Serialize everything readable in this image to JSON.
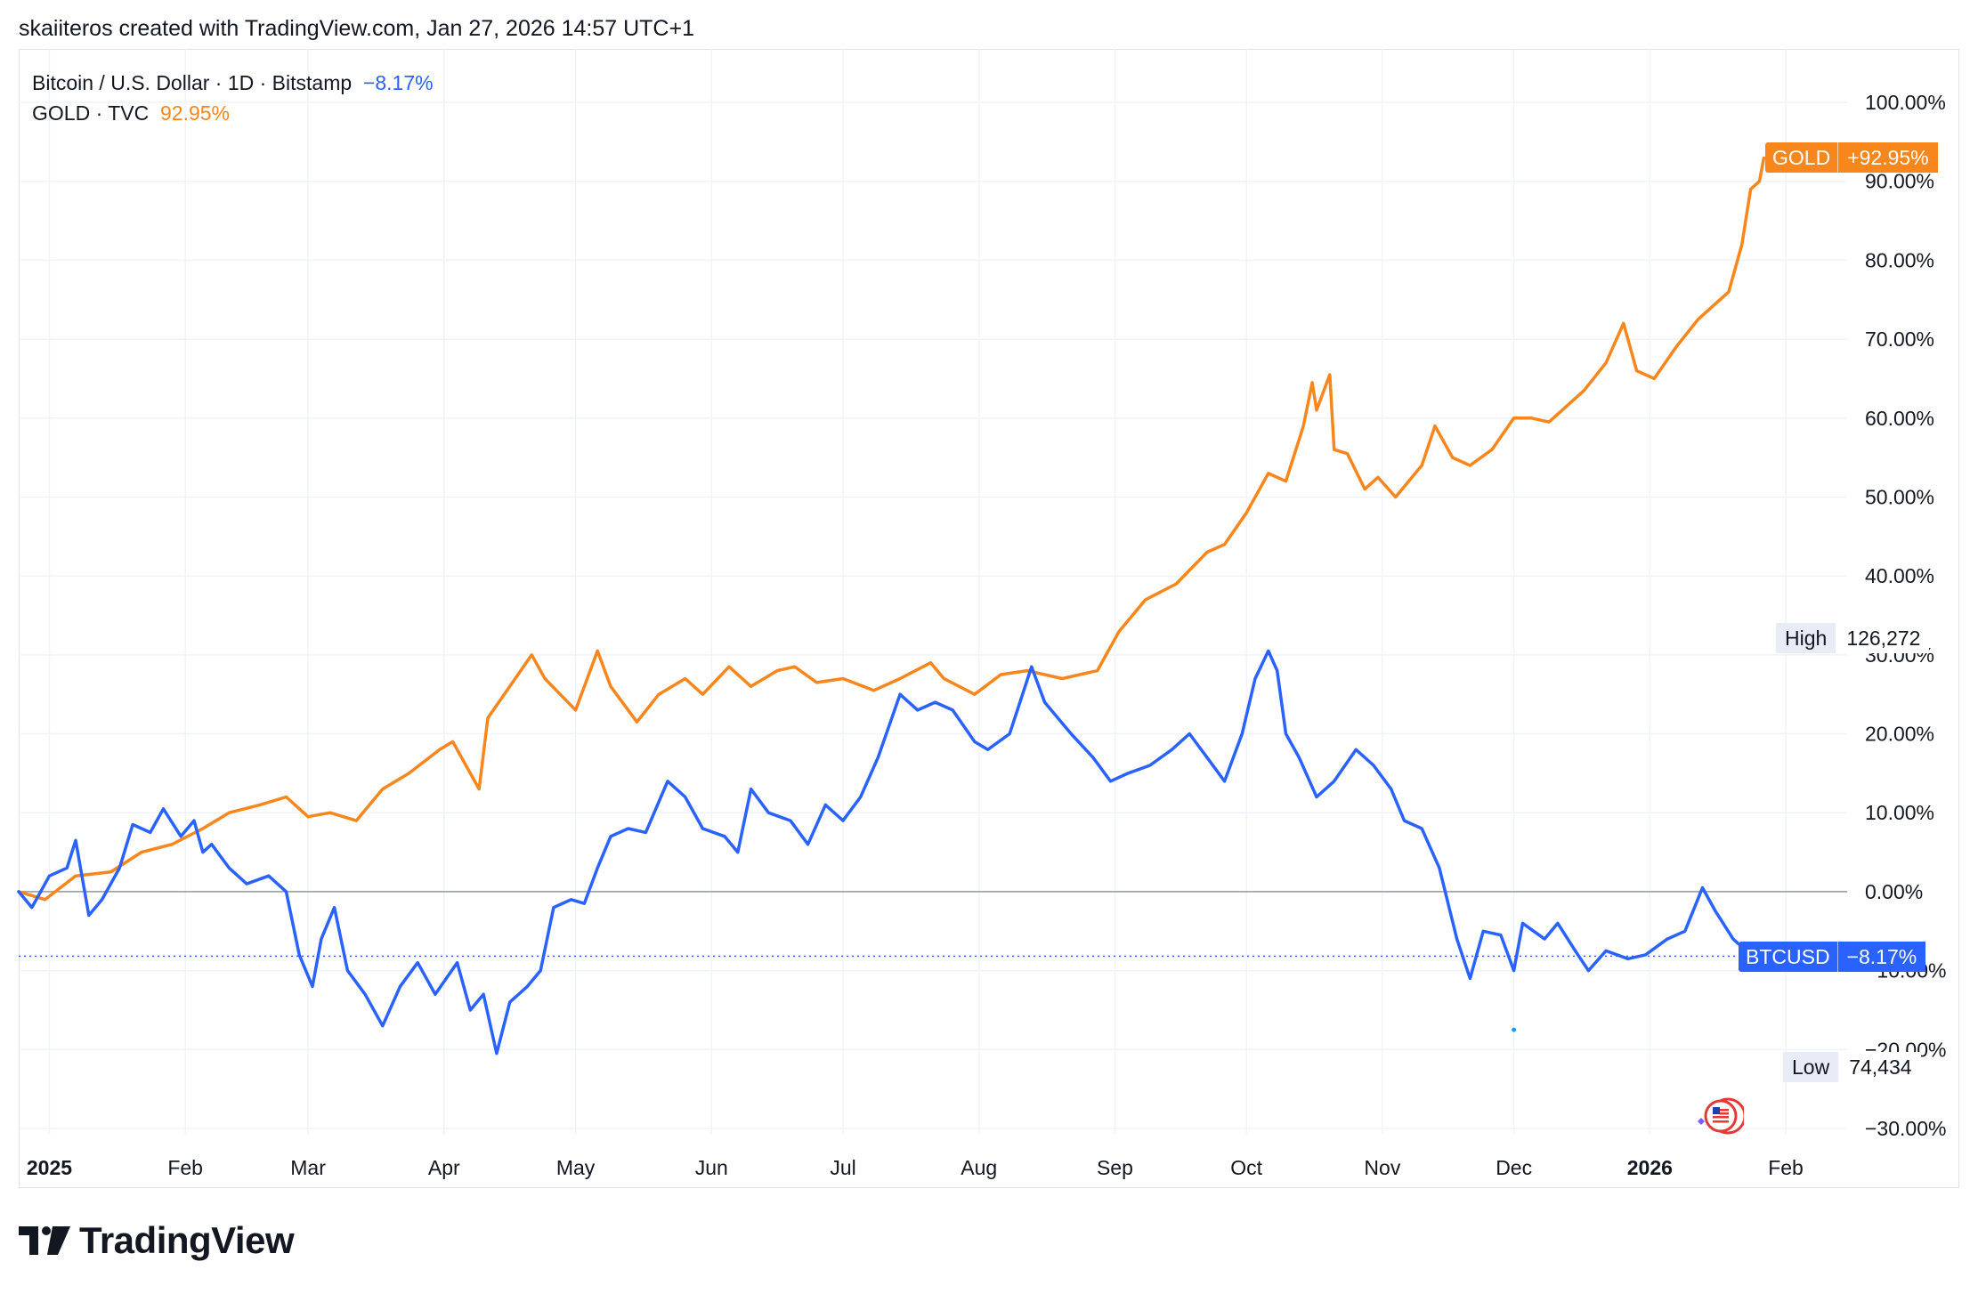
{
  "attribution": "skaiiteros created with TradingView.com, Jan 27, 2026 14:57 UTC+1",
  "legend": [
    {
      "label": "Bitcoin / U.S. Dollar · 1D · Bitstamp",
      "value": "−8.17%",
      "color": "#2962ff"
    },
    {
      "label": "GOLD · TVC",
      "value": "92.95%",
      "color": "#f7861d"
    }
  ],
  "price_tags": {
    "gold": {
      "symbol": "GOLD",
      "value": "+92.95%",
      "color": "#f7861d"
    },
    "btc": {
      "symbol": "BTCUSD",
      "value": "−8.17%",
      "color": "#2962ff"
    }
  },
  "high": {
    "label": "High",
    "value": "126,272"
  },
  "low": {
    "label": "Low",
    "value": "74,434"
  },
  "brand": "TradingView",
  "icons": {
    "logo": "tradingview-logo-icon",
    "event": "us-flag-event-icon"
  },
  "chart_data": {
    "type": "line",
    "title": "",
    "xlabel": "",
    "ylabel": "",
    "y_unit": "%",
    "ylim": [
      -30,
      100
    ],
    "y_ticks": [
      100,
      90,
      80,
      70,
      60,
      50,
      40,
      30,
      20,
      10,
      0,
      -10,
      -20,
      -30
    ],
    "y_tick_labels": [
      "100.00%",
      "90.00%",
      "80.00%",
      "70.00%",
      "60.00%",
      "50.00%",
      "40.00%",
      "30.00%",
      "20.00%",
      "10.00%",
      "0.00%",
      "−10.00%",
      "−20.00%",
      "−30.00%"
    ],
    "x_range": [
      "2024-12-25",
      "2026-02-15"
    ],
    "x_ticks": [
      {
        "date": "2025-01-01",
        "label": "2025",
        "bold": true
      },
      {
        "date": "2025-02-01",
        "label": "Feb",
        "bold": false
      },
      {
        "date": "2025-03-01",
        "label": "Mar",
        "bold": false
      },
      {
        "date": "2025-04-01",
        "label": "Apr",
        "bold": false
      },
      {
        "date": "2025-05-01",
        "label": "May",
        "bold": false
      },
      {
        "date": "2025-06-01",
        "label": "Jun",
        "bold": false
      },
      {
        "date": "2025-07-01",
        "label": "Jul",
        "bold": false
      },
      {
        "date": "2025-08-01",
        "label": "Aug",
        "bold": false
      },
      {
        "date": "2025-09-01",
        "label": "Sep",
        "bold": false
      },
      {
        "date": "2025-10-01",
        "label": "Oct",
        "bold": false
      },
      {
        "date": "2025-11-01",
        "label": "Nov",
        "bold": false
      },
      {
        "date": "2025-12-01",
        "label": "Dec",
        "bold": false
      },
      {
        "date": "2026-01-01",
        "label": "2026",
        "bold": true
      },
      {
        "date": "2026-02-01",
        "label": "Feb",
        "bold": false
      }
    ],
    "grid": true,
    "legend_position": "top-left",
    "zero_line": 0,
    "last_value_line": -8.17,
    "series": [
      {
        "name": "GOLD",
        "color": "#f7861d",
        "points": [
          [
            "2024-12-25",
            0
          ],
          [
            "2024-12-31",
            -1
          ],
          [
            "2025-01-07",
            2
          ],
          [
            "2025-01-15",
            2.5
          ],
          [
            "2025-01-22",
            5
          ],
          [
            "2025-01-29",
            6
          ],
          [
            "2025-02-05",
            8
          ],
          [
            "2025-02-11",
            10
          ],
          [
            "2025-02-18",
            11
          ],
          [
            "2025-02-24",
            12
          ],
          [
            "2025-03-01",
            9.5
          ],
          [
            "2025-03-06",
            10
          ],
          [
            "2025-03-12",
            9
          ],
          [
            "2025-03-18",
            13
          ],
          [
            "2025-03-24",
            15
          ],
          [
            "2025-03-31",
            18
          ],
          [
            "2025-04-03",
            19
          ],
          [
            "2025-04-07",
            15
          ],
          [
            "2025-04-09",
            13
          ],
          [
            "2025-04-11",
            22
          ],
          [
            "2025-04-16",
            26
          ],
          [
            "2025-04-21",
            30
          ],
          [
            "2025-04-24",
            27
          ],
          [
            "2025-05-01",
            23
          ],
          [
            "2025-05-06",
            30.5
          ],
          [
            "2025-05-09",
            26
          ],
          [
            "2025-05-15",
            21.5
          ],
          [
            "2025-05-20",
            25
          ],
          [
            "2025-05-26",
            27
          ],
          [
            "2025-05-30",
            25
          ],
          [
            "2025-06-05",
            28.5
          ],
          [
            "2025-06-10",
            26
          ],
          [
            "2025-06-16",
            28
          ],
          [
            "2025-06-20",
            28.5
          ],
          [
            "2025-06-25",
            26.5
          ],
          [
            "2025-07-01",
            27
          ],
          [
            "2025-07-08",
            25.5
          ],
          [
            "2025-07-14",
            27
          ],
          [
            "2025-07-21",
            29
          ],
          [
            "2025-07-24",
            27
          ],
          [
            "2025-07-31",
            25
          ],
          [
            "2025-08-06",
            27.5
          ],
          [
            "2025-08-12",
            28
          ],
          [
            "2025-08-20",
            27
          ],
          [
            "2025-08-28",
            28
          ],
          [
            "2025-09-02",
            33
          ],
          [
            "2025-09-08",
            37
          ],
          [
            "2025-09-15",
            39
          ],
          [
            "2025-09-22",
            43
          ],
          [
            "2025-09-26",
            44
          ],
          [
            "2025-10-01",
            48
          ],
          [
            "2025-10-06",
            53
          ],
          [
            "2025-10-10",
            52
          ],
          [
            "2025-10-14",
            59
          ],
          [
            "2025-10-16",
            64.5
          ],
          [
            "2025-10-17",
            61
          ],
          [
            "2025-10-20",
            65.5
          ],
          [
            "2025-10-21",
            56
          ],
          [
            "2025-10-24",
            55.5
          ],
          [
            "2025-10-28",
            51
          ],
          [
            "2025-10-31",
            52.5
          ],
          [
            "2025-11-04",
            50
          ],
          [
            "2025-11-10",
            54
          ],
          [
            "2025-11-13",
            59
          ],
          [
            "2025-11-17",
            55
          ],
          [
            "2025-11-21",
            54
          ],
          [
            "2025-11-26",
            56
          ],
          [
            "2025-12-01",
            60
          ],
          [
            "2025-12-05",
            60
          ],
          [
            "2025-12-09",
            59.5
          ],
          [
            "2025-12-12",
            61
          ],
          [
            "2025-12-17",
            63.5
          ],
          [
            "2025-12-22",
            67
          ],
          [
            "2025-12-26",
            72
          ],
          [
            "2025-12-29",
            66
          ],
          [
            "2026-01-02",
            65
          ],
          [
            "2026-01-07",
            69
          ],
          [
            "2026-01-12",
            72.5
          ],
          [
            "2026-01-15",
            74
          ],
          [
            "2026-01-19",
            76
          ],
          [
            "2026-01-22",
            82
          ],
          [
            "2026-01-24",
            89
          ],
          [
            "2026-01-26",
            90
          ],
          [
            "2026-01-27",
            92.95
          ]
        ]
      },
      {
        "name": "BTCUSD",
        "color": "#2962ff",
        "points": [
          [
            "2024-12-25",
            0
          ],
          [
            "2024-12-28",
            -2
          ],
          [
            "2025-01-01",
            2
          ],
          [
            "2025-01-05",
            3
          ],
          [
            "2025-01-07",
            6.5
          ],
          [
            "2025-01-10",
            -3
          ],
          [
            "2025-01-13",
            -1
          ],
          [
            "2025-01-17",
            3
          ],
          [
            "2025-01-20",
            8.5
          ],
          [
            "2025-01-24",
            7.5
          ],
          [
            "2025-01-27",
            10.5
          ],
          [
            "2025-01-31",
            7
          ],
          [
            "2025-02-03",
            9
          ],
          [
            "2025-02-05",
            5
          ],
          [
            "2025-02-07",
            6
          ],
          [
            "2025-02-11",
            3
          ],
          [
            "2025-02-15",
            1
          ],
          [
            "2025-02-20",
            2
          ],
          [
            "2025-02-24",
            0
          ],
          [
            "2025-02-27",
            -8
          ],
          [
            "2025-03-02",
            -12
          ],
          [
            "2025-03-04",
            -6
          ],
          [
            "2025-03-07",
            -2
          ],
          [
            "2025-03-10",
            -10
          ],
          [
            "2025-03-14",
            -13
          ],
          [
            "2025-03-18",
            -17
          ],
          [
            "2025-03-22",
            -12
          ],
          [
            "2025-03-26",
            -9
          ],
          [
            "2025-03-30",
            -13
          ],
          [
            "2025-04-04",
            -9
          ],
          [
            "2025-04-07",
            -15
          ],
          [
            "2025-04-10",
            -13
          ],
          [
            "2025-04-13",
            -20.5
          ],
          [
            "2025-04-16",
            -14
          ],
          [
            "2025-04-20",
            -12
          ],
          [
            "2025-04-23",
            -10
          ],
          [
            "2025-04-26",
            -2
          ],
          [
            "2025-04-30",
            -1
          ],
          [
            "2025-05-03",
            -1.5
          ],
          [
            "2025-05-06",
            3
          ],
          [
            "2025-05-09",
            7
          ],
          [
            "2025-05-13",
            8
          ],
          [
            "2025-05-17",
            7.5
          ],
          [
            "2025-05-22",
            14
          ],
          [
            "2025-05-26",
            12
          ],
          [
            "2025-05-30",
            8
          ],
          [
            "2025-06-04",
            7
          ],
          [
            "2025-06-07",
            5
          ],
          [
            "2025-06-10",
            13
          ],
          [
            "2025-06-14",
            10
          ],
          [
            "2025-06-19",
            9
          ],
          [
            "2025-06-23",
            6
          ],
          [
            "2025-06-27",
            11
          ],
          [
            "2025-07-01",
            9
          ],
          [
            "2025-07-05",
            12
          ],
          [
            "2025-07-09",
            17
          ],
          [
            "2025-07-14",
            25
          ],
          [
            "2025-07-18",
            23
          ],
          [
            "2025-07-22",
            24
          ],
          [
            "2025-07-26",
            23
          ],
          [
            "2025-07-31",
            19
          ],
          [
            "2025-08-03",
            18
          ],
          [
            "2025-08-08",
            20
          ],
          [
            "2025-08-13",
            28.5
          ],
          [
            "2025-08-16",
            24
          ],
          [
            "2025-08-22",
            20
          ],
          [
            "2025-08-27",
            17
          ],
          [
            "2025-08-31",
            14
          ],
          [
            "2025-09-04",
            15
          ],
          [
            "2025-09-09",
            16
          ],
          [
            "2025-09-14",
            18
          ],
          [
            "2025-09-18",
            20
          ],
          [
            "2025-09-22",
            17
          ],
          [
            "2025-09-26",
            14
          ],
          [
            "2025-09-30",
            20
          ],
          [
            "2025-10-03",
            27
          ],
          [
            "2025-10-06",
            30.5
          ],
          [
            "2025-10-08",
            28
          ],
          [
            "2025-10-10",
            20
          ],
          [
            "2025-10-13",
            17
          ],
          [
            "2025-10-17",
            12
          ],
          [
            "2025-10-21",
            14
          ],
          [
            "2025-10-26",
            18
          ],
          [
            "2025-10-30",
            16
          ],
          [
            "2025-11-03",
            13
          ],
          [
            "2025-11-06",
            9
          ],
          [
            "2025-11-10",
            8
          ],
          [
            "2025-11-14",
            3
          ],
          [
            "2025-11-18",
            -6
          ],
          [
            "2025-11-21",
            -11
          ],
          [
            "2025-11-24",
            -5
          ],
          [
            "2025-11-28",
            -5.5
          ],
          [
            "2025-12-01",
            -10
          ],
          [
            "2025-12-03",
            -4
          ],
          [
            "2025-12-08",
            -6
          ],
          [
            "2025-12-11",
            -4
          ],
          [
            "2025-12-15",
            -7.5
          ],
          [
            "2025-12-18",
            -10
          ],
          [
            "2025-12-22",
            -7.5
          ],
          [
            "2025-12-27",
            -8.5
          ],
          [
            "2025-12-31",
            -8
          ],
          [
            "2026-01-05",
            -6
          ],
          [
            "2026-01-09",
            -5
          ],
          [
            "2026-01-13",
            0.5
          ],
          [
            "2026-01-16",
            -2.5
          ],
          [
            "2026-01-20",
            -6
          ],
          [
            "2026-01-22",
            -7
          ],
          [
            "2026-01-24",
            -9
          ],
          [
            "2026-01-26",
            -8.17
          ]
        ]
      }
    ],
    "stray_point": {
      "date": "2025-12-01",
      "value": -17.5
    }
  }
}
